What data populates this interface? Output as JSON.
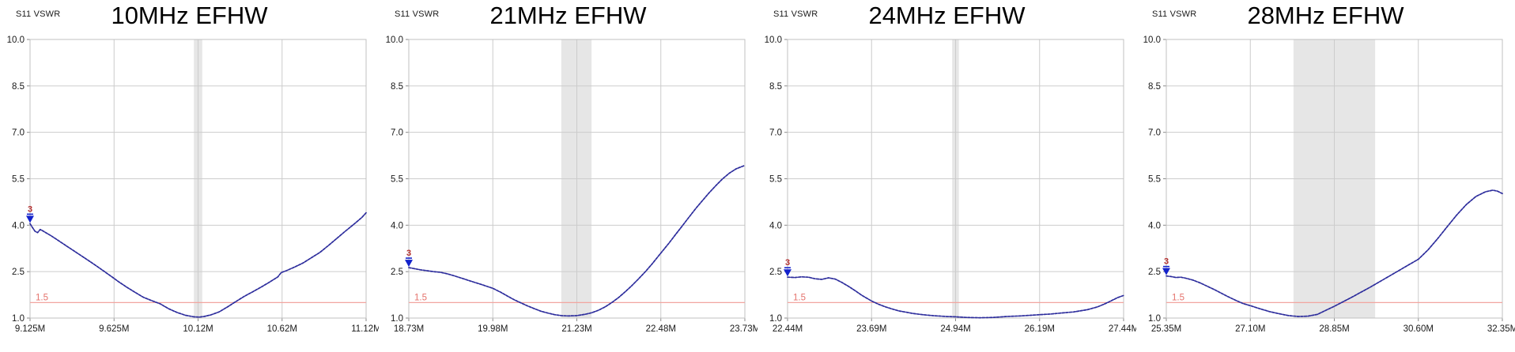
{
  "colors": {
    "trace": "#2c2c9c",
    "ref_line": "#f2a5a0",
    "ref_label": "#e4726c",
    "band": "#e6e6e6",
    "grid": "#cccccc",
    "border": "#c0c0c0",
    "tick_mark": "#8a8a8a",
    "axis_text": "#1a1a1a",
    "title_text": "#000000",
    "marker_fill": "#1322cc",
    "marker_label": "#b43030"
  },
  "chart_data": [
    {
      "type": "line",
      "title": "10MHz EFHW",
      "corner_label": "S11 VSWR",
      "x_unit": "MHz",
      "x_range": [
        9.125,
        11.125
      ],
      "x_ticks": [
        9.125,
        9.625,
        10.125,
        10.625,
        11.125
      ],
      "x_tick_labels": [
        "9.125M",
        "9.625M",
        "10.12M",
        "10.62M",
        "11.12M"
      ],
      "ylim": [
        1.0,
        10.0
      ],
      "y_ticks": [
        10.0,
        8.5,
        7.0,
        5.5,
        4.0,
        2.5,
        1.0
      ],
      "y_tick_labels": [
        "10.0",
        "8.5",
        "7.0",
        "5.5",
        "4.0",
        "2.5",
        "1.0"
      ],
      "grid": true,
      "ref_line": {
        "value": 1.5,
        "label": "1.5"
      },
      "band_shading_mhz": [
        10.1,
        10.15
      ],
      "marker": {
        "label": "3",
        "freq": 9.125,
        "vswr": 4.05
      },
      "series": [
        {
          "name": "S11 VSWR",
          "points": [
            [
              9.125,
              4.05
            ],
            [
              9.14,
              3.92
            ],
            [
              9.155,
              3.8
            ],
            [
              9.17,
              3.76
            ],
            [
              9.185,
              3.86
            ],
            [
              9.2,
              3.82
            ],
            [
              9.25,
              3.66
            ],
            [
              9.3,
              3.48
            ],
            [
              9.35,
              3.3
            ],
            [
              9.4,
              3.12
            ],
            [
              9.45,
              2.94
            ],
            [
              9.5,
              2.76
            ],
            [
              9.55,
              2.57
            ],
            [
              9.6,
              2.38
            ],
            [
              9.625,
              2.28
            ],
            [
              9.65,
              2.18
            ],
            [
              9.7,
              2.0
            ],
            [
              9.75,
              1.83
            ],
            [
              9.8,
              1.67
            ],
            [
              9.85,
              1.56
            ],
            [
              9.9,
              1.46
            ],
            [
              9.95,
              1.3
            ],
            [
              10.0,
              1.18
            ],
            [
              10.05,
              1.09
            ],
            [
              10.1,
              1.04
            ],
            [
              10.13,
              1.03
            ],
            [
              10.16,
              1.05
            ],
            [
              10.2,
              1.1
            ],
            [
              10.25,
              1.2
            ],
            [
              10.3,
              1.36
            ],
            [
              10.34,
              1.5
            ],
            [
              10.4,
              1.7
            ],
            [
              10.45,
              1.85
            ],
            [
              10.5,
              2.0
            ],
            [
              10.55,
              2.16
            ],
            [
              10.6,
              2.33
            ],
            [
              10.62,
              2.47
            ],
            [
              10.65,
              2.53
            ],
            [
              10.7,
              2.65
            ],
            [
              10.75,
              2.78
            ],
            [
              10.8,
              2.95
            ],
            [
              10.85,
              3.12
            ],
            [
              10.9,
              3.34
            ],
            [
              10.95,
              3.57
            ],
            [
              11.0,
              3.8
            ],
            [
              11.05,
              4.02
            ],
            [
              11.1,
              4.25
            ],
            [
              11.125,
              4.4
            ]
          ]
        }
      ]
    },
    {
      "type": "line",
      "title": "21MHz EFHW",
      "corner_label": "S11 VSWR",
      "x_unit": "MHz",
      "x_range": [
        18.73,
        23.73
      ],
      "x_ticks": [
        18.73,
        19.98,
        21.23,
        22.48,
        23.73
      ],
      "x_tick_labels": [
        "18.73M",
        "19.98M",
        "21.23M",
        "22.48M",
        "23.73M"
      ],
      "ylim": [
        1.0,
        10.0
      ],
      "y_ticks": [
        10.0,
        8.5,
        7.0,
        5.5,
        4.0,
        2.5,
        1.0
      ],
      "y_tick_labels": [
        "10.0",
        "8.5",
        "7.0",
        "5.5",
        "4.0",
        "2.5",
        "1.0"
      ],
      "grid": true,
      "ref_line": {
        "value": 1.5,
        "label": "1.5"
      },
      "band_shading_mhz": [
        21.0,
        21.45
      ],
      "marker": {
        "label": "3",
        "freq": 18.73,
        "vswr": 2.63
      },
      "series": [
        {
          "name": "S11 VSWR",
          "points": [
            [
              18.73,
              2.63
            ],
            [
              18.8,
              2.6
            ],
            [
              18.9,
              2.56
            ],
            [
              19.0,
              2.53
            ],
            [
              19.1,
              2.5
            ],
            [
              19.2,
              2.48
            ],
            [
              19.3,
              2.43
            ],
            [
              19.4,
              2.37
            ],
            [
              19.5,
              2.3
            ],
            [
              19.6,
              2.23
            ],
            [
              19.7,
              2.16
            ],
            [
              19.8,
              2.09
            ],
            [
              19.9,
              2.02
            ],
            [
              19.98,
              1.96
            ],
            [
              20.1,
              1.83
            ],
            [
              20.2,
              1.71
            ],
            [
              20.3,
              1.59
            ],
            [
              20.4,
              1.49
            ],
            [
              20.5,
              1.39
            ],
            [
              20.6,
              1.3
            ],
            [
              20.7,
              1.22
            ],
            [
              20.8,
              1.16
            ],
            [
              20.9,
              1.11
            ],
            [
              21.0,
              1.08
            ],
            [
              21.1,
              1.07
            ],
            [
              21.23,
              1.08
            ],
            [
              21.35,
              1.12
            ],
            [
              21.45,
              1.17
            ],
            [
              21.55,
              1.25
            ],
            [
              21.65,
              1.36
            ],
            [
              21.75,
              1.5
            ],
            [
              21.85,
              1.66
            ],
            [
              21.95,
              1.85
            ],
            [
              22.05,
              2.05
            ],
            [
              22.15,
              2.27
            ],
            [
              22.25,
              2.5
            ],
            [
              22.35,
              2.75
            ],
            [
              22.48,
              3.1
            ],
            [
              22.6,
              3.42
            ],
            [
              22.7,
              3.7
            ],
            [
              22.8,
              3.98
            ],
            [
              22.9,
              4.26
            ],
            [
              23.0,
              4.54
            ],
            [
              23.1,
              4.8
            ],
            [
              23.2,
              5.05
            ],
            [
              23.3,
              5.28
            ],
            [
              23.4,
              5.5
            ],
            [
              23.5,
              5.68
            ],
            [
              23.6,
              5.82
            ],
            [
              23.73,
              5.93
            ]
          ]
        }
      ]
    },
    {
      "type": "line",
      "title": "24MHz EFHW",
      "corner_label": "S11 VSWR",
      "x_unit": "MHz",
      "x_range": [
        22.44,
        27.44
      ],
      "x_ticks": [
        22.44,
        23.69,
        24.94,
        26.19,
        27.44
      ],
      "x_tick_labels": [
        "22.44M",
        "23.69M",
        "24.94M",
        "26.19M",
        "27.44M"
      ],
      "ylim": [
        1.0,
        10.0
      ],
      "y_ticks": [
        10.0,
        8.5,
        7.0,
        5.5,
        4.0,
        2.5,
        1.0
      ],
      "y_tick_labels": [
        "10.0",
        "8.5",
        "7.0",
        "5.5",
        "4.0",
        "2.5",
        "1.0"
      ],
      "grid": true,
      "ref_line": {
        "value": 1.5,
        "label": "1.5"
      },
      "band_shading_mhz": [
        24.89,
        24.99
      ],
      "marker": {
        "label": "3",
        "freq": 22.44,
        "vswr": 2.32
      },
      "series": [
        {
          "name": "S11 VSWR",
          "points": [
            [
              22.44,
              2.32
            ],
            [
              22.55,
              2.31
            ],
            [
              22.65,
              2.33
            ],
            [
              22.75,
              2.32
            ],
            [
              22.85,
              2.27
            ],
            [
              22.95,
              2.25
            ],
            [
              23.05,
              2.3
            ],
            [
              23.15,
              2.26
            ],
            [
              23.25,
              2.15
            ],
            [
              23.35,
              2.02
            ],
            [
              23.45,
              1.88
            ],
            [
              23.55,
              1.73
            ],
            [
              23.69,
              1.55
            ],
            [
              23.8,
              1.44
            ],
            [
              23.9,
              1.36
            ],
            [
              24.0,
              1.29
            ],
            [
              24.1,
              1.23
            ],
            [
              24.2,
              1.19
            ],
            [
              24.3,
              1.15
            ],
            [
              24.45,
              1.11
            ],
            [
              24.6,
              1.08
            ],
            [
              24.8,
              1.05
            ],
            [
              24.94,
              1.04
            ],
            [
              25.1,
              1.02
            ],
            [
              25.3,
              1.01
            ],
            [
              25.5,
              1.02
            ],
            [
              25.7,
              1.05
            ],
            [
              25.9,
              1.07
            ],
            [
              26.05,
              1.09
            ],
            [
              26.19,
              1.11
            ],
            [
              26.35,
              1.13
            ],
            [
              26.5,
              1.16
            ],
            [
              26.7,
              1.2
            ],
            [
              26.9,
              1.27
            ],
            [
              27.05,
              1.36
            ],
            [
              27.15,
              1.45
            ],
            [
              27.25,
              1.55
            ],
            [
              27.35,
              1.66
            ],
            [
              27.44,
              1.73
            ]
          ]
        }
      ]
    },
    {
      "type": "line",
      "title": "28MHz EFHW",
      "corner_label": "S11 VSWR",
      "x_unit": "MHz",
      "x_range": [
        25.35,
        32.35
      ],
      "x_ticks": [
        25.35,
        27.1,
        28.85,
        30.6,
        32.35
      ],
      "x_tick_labels": [
        "25.35M",
        "27.10M",
        "28.85M",
        "30.60M",
        "32.35M"
      ],
      "ylim": [
        1.0,
        10.0
      ],
      "y_ticks": [
        10.0,
        8.5,
        7.0,
        5.5,
        4.0,
        2.5,
        1.0
      ],
      "y_tick_labels": [
        "10.0",
        "8.5",
        "7.0",
        "5.5",
        "4.0",
        "2.5",
        "1.0"
      ],
      "grid": true,
      "ref_line": {
        "value": 1.5,
        "label": "1.5"
      },
      "band_shading_mhz": [
        28.0,
        29.7
      ],
      "marker": {
        "label": "3",
        "freq": 25.35,
        "vswr": 2.36
      },
      "series": [
        {
          "name": "S11 VSWR",
          "points": [
            [
              25.35,
              2.36
            ],
            [
              25.45,
              2.34
            ],
            [
              25.55,
              2.31
            ],
            [
              25.65,
              2.32
            ],
            [
              25.75,
              2.29
            ],
            [
              25.9,
              2.23
            ],
            [
              26.05,
              2.14
            ],
            [
              26.2,
              2.03
            ],
            [
              26.35,
              1.92
            ],
            [
              26.5,
              1.8
            ],
            [
              26.65,
              1.68
            ],
            [
              26.8,
              1.57
            ],
            [
              26.95,
              1.47
            ],
            [
              27.1,
              1.4
            ],
            [
              27.3,
              1.3
            ],
            [
              27.5,
              1.21
            ],
            [
              27.7,
              1.14
            ],
            [
              27.9,
              1.08
            ],
            [
              28.1,
              1.05
            ],
            [
              28.3,
              1.06
            ],
            [
              28.5,
              1.12
            ],
            [
              28.7,
              1.27
            ],
            [
              28.85,
              1.38
            ],
            [
              29.0,
              1.5
            ],
            [
              29.2,
              1.66
            ],
            [
              29.4,
              1.83
            ],
            [
              29.6,
              2.0
            ],
            [
              29.8,
              2.18
            ],
            [
              30.0,
              2.36
            ],
            [
              30.2,
              2.54
            ],
            [
              30.4,
              2.72
            ],
            [
              30.6,
              2.9
            ],
            [
              30.8,
              3.2
            ],
            [
              31.0,
              3.56
            ],
            [
              31.2,
              3.95
            ],
            [
              31.4,
              4.33
            ],
            [
              31.6,
              4.67
            ],
            [
              31.8,
              4.93
            ],
            [
              32.0,
              5.08
            ],
            [
              32.15,
              5.13
            ],
            [
              32.25,
              5.1
            ],
            [
              32.35,
              5.02
            ]
          ]
        }
      ]
    }
  ]
}
